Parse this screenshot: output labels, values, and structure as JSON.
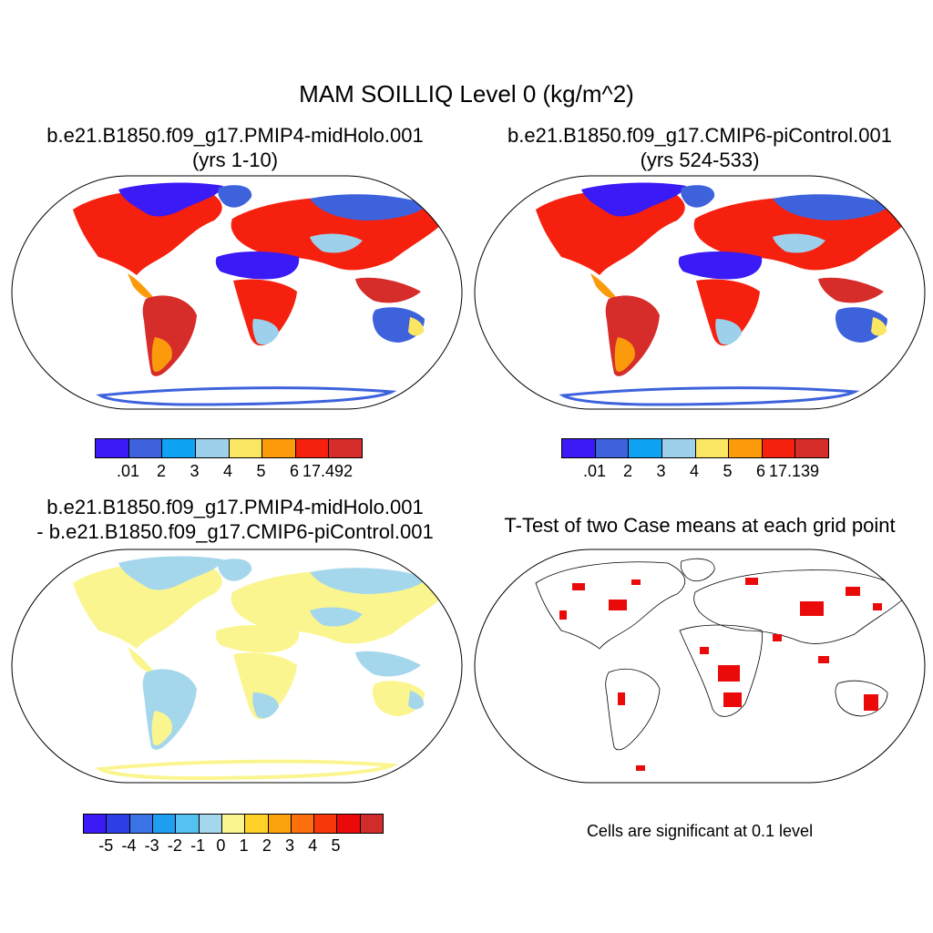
{
  "main_title": "MAM SOILLIQ Level 0 (kg/m^2)",
  "panels": [
    {
      "title_line1": "b.e21.B1850.f09_g17.PMIP4-midHolo.001",
      "title_line2": "(yrs 1-10)"
    },
    {
      "title_line1": "b.e21.B1850.f09_g17.CMIP6-piControl.001",
      "title_line2": "(yrs 524-533)"
    },
    {
      "title_line1": "b.e21.B1850.f09_g17.PMIP4-midHolo.001",
      "title_line2": "- b.e21.B1850.f09_g17.CMIP6-piControl.001"
    },
    {
      "title_line1": "T-Test of two Case means at each grid point"
    }
  ],
  "colorbars": {
    "abs_colors": [
      "#3a1af5",
      "#3d62dc",
      "#0ea2f2",
      "#9dd0ea",
      "#fbe663",
      "#fb9a0b",
      "#f6200f",
      "#d62c2a"
    ],
    "cb1_labels": [
      ".01",
      "2",
      "3",
      "4",
      "5",
      "6",
      "17.492"
    ],
    "cb2_labels": [
      ".01",
      "2",
      "3",
      "4",
      "5",
      "6",
      "17.139"
    ],
    "diff_colors": [
      "#3a1af5",
      "#2e3ee6",
      "#3973e6",
      "#1f9ef2",
      "#55c1f0",
      "#a5d7ec",
      "#fbf590",
      "#fdd127",
      "#fca20f",
      "#fb6f0c",
      "#f8380b",
      "#eb0a0a",
      "#d12c2c"
    ],
    "diff_labels": [
      "-5",
      "-4",
      "-3",
      "-2",
      "-1",
      "0",
      "1",
      "2",
      "3",
      "4",
      "5"
    ]
  },
  "significance_note": "Cells are significant at 0.1 level"
}
